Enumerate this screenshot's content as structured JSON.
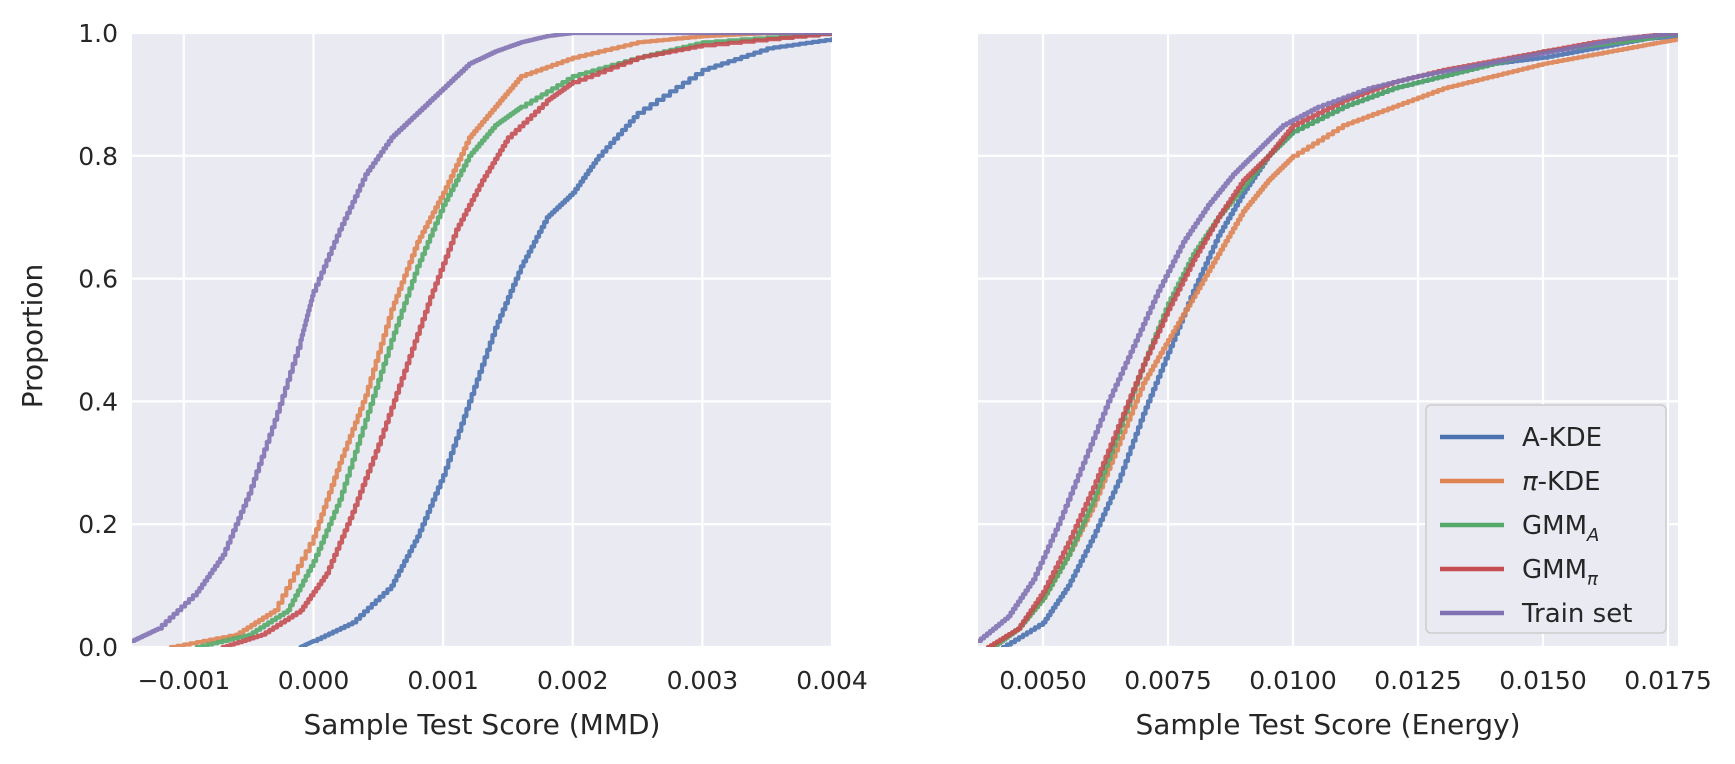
{
  "chart_data": [
    {
      "type": "line",
      "subtype": "ecdf",
      "title": "",
      "xlabel": "Sample Test Score (MMD)",
      "ylabel": "Proportion",
      "xlim": [
        -0.0014,
        0.004
      ],
      "ylim": [
        0.0,
        1.0
      ],
      "xticks": [
        -0.001,
        0.0,
        0.001,
        0.002,
        0.003,
        0.004
      ],
      "xtick_labels": [
        "−0.001",
        "0.000",
        "0.001",
        "0.002",
        "0.003",
        "0.004"
      ],
      "yticks": [
        0.0,
        0.2,
        0.4,
        0.6,
        0.8,
        1.0
      ],
      "ytick_labels": [
        "0.0",
        "0.2",
        "0.4",
        "0.6",
        "0.8",
        "1.0"
      ],
      "grid": true,
      "series": [
        {
          "name": "A-KDE",
          "color": "#4c72b0",
          "x": [
            -0.0001,
            0.0,
            0.0003,
            0.0006,
            0.0008,
            0.001,
            0.0012,
            0.0014,
            0.0016,
            0.0018,
            0.002,
            0.0022,
            0.0025,
            0.003,
            0.0035,
            0.004
          ],
          "y": [
            0.0,
            0.01,
            0.04,
            0.1,
            0.18,
            0.28,
            0.4,
            0.52,
            0.62,
            0.7,
            0.74,
            0.8,
            0.87,
            0.94,
            0.975,
            0.99
          ]
        },
        {
          "name": "π-KDE",
          "color": "#dd8452",
          "x": [
            -0.0011,
            -0.0006,
            -0.0003,
            0.0,
            0.0002,
            0.0004,
            0.0006,
            0.0008,
            0.001,
            0.0012,
            0.0014,
            0.0016,
            0.002,
            0.0025,
            0.003,
            0.0035,
            0.004
          ],
          "y": [
            0.0,
            0.02,
            0.06,
            0.18,
            0.3,
            0.41,
            0.55,
            0.66,
            0.74,
            0.83,
            0.88,
            0.93,
            0.96,
            0.985,
            0.995,
            1.0,
            1.0
          ]
        },
        {
          "name": "GMM",
          "name_sub": "A",
          "color": "#55a868",
          "x": [
            -0.0009,
            -0.0005,
            -0.0002,
            0.0,
            0.0002,
            0.0004,
            0.0006,
            0.0008,
            0.001,
            0.0012,
            0.0014,
            0.0016,
            0.002,
            0.0025,
            0.003,
            0.004
          ],
          "y": [
            0.0,
            0.02,
            0.06,
            0.14,
            0.24,
            0.37,
            0.5,
            0.62,
            0.72,
            0.8,
            0.85,
            0.88,
            0.93,
            0.96,
            0.985,
            1.0
          ]
        },
        {
          "name": "GMM",
          "name_sub": "π",
          "color": "#c44e52",
          "x": [
            -0.0007,
            -0.0004,
            -0.0001,
            0.0001,
            0.0003,
            0.0005,
            0.0007,
            0.0009,
            0.0011,
            0.0013,
            0.0015,
            0.0018,
            0.002,
            0.0025,
            0.003,
            0.004
          ],
          "y": [
            0.0,
            0.02,
            0.06,
            0.12,
            0.22,
            0.33,
            0.45,
            0.57,
            0.68,
            0.76,
            0.83,
            0.89,
            0.92,
            0.96,
            0.98,
            1.0
          ]
        },
        {
          "name": "Train set",
          "color": "#8172b3",
          "x": [
            -0.0014,
            -0.0012,
            -0.0009,
            -0.0007,
            -0.0005,
            -0.0003,
            -0.0001,
            0.0,
            0.0002,
            0.0004,
            0.0006,
            0.0008,
            0.001,
            0.0012,
            0.0014,
            0.0016,
            0.0018,
            0.002,
            0.004
          ],
          "y": [
            0.01,
            0.03,
            0.09,
            0.15,
            0.25,
            0.37,
            0.5,
            0.58,
            0.68,
            0.77,
            0.83,
            0.87,
            0.91,
            0.95,
            0.97,
            0.985,
            0.995,
            1.0,
            1.0
          ]
        }
      ]
    },
    {
      "type": "line",
      "subtype": "ecdf",
      "title": "",
      "xlabel": "Sample Test Score (Energy)",
      "ylabel": "",
      "xlim": [
        0.0037,
        0.0177
      ],
      "ylim": [
        0.0,
        1.0
      ],
      "xticks": [
        0.005,
        0.0075,
        0.01,
        0.0125,
        0.015,
        0.0175
      ],
      "xtick_labels": [
        "0.0050",
        "0.0075",
        "0.0100",
        "0.0125",
        "0.0150",
        "0.0175"
      ],
      "yticks": [
        0.0,
        0.2,
        0.4,
        0.6,
        0.8,
        1.0
      ],
      "grid": true,
      "legend_position": "lower-right",
      "series": [
        {
          "name": "A-KDE",
          "color": "#4c72b0",
          "x": [
            0.0042,
            0.005,
            0.0055,
            0.006,
            0.0065,
            0.007,
            0.0075,
            0.008,
            0.0085,
            0.009,
            0.0095,
            0.01,
            0.011,
            0.012,
            0.013,
            0.014,
            0.015,
            0.016,
            0.017,
            0.0177
          ],
          "y": [
            0.0,
            0.04,
            0.1,
            0.18,
            0.27,
            0.38,
            0.48,
            0.58,
            0.67,
            0.74,
            0.8,
            0.84,
            0.88,
            0.91,
            0.93,
            0.95,
            0.96,
            0.975,
            0.99,
            0.995
          ]
        },
        {
          "name": "π-KDE",
          "color": "#dd8452",
          "x": [
            0.0039,
            0.0045,
            0.005,
            0.0055,
            0.006,
            0.0065,
            0.007,
            0.0075,
            0.008,
            0.0085,
            0.009,
            0.0095,
            0.01,
            0.011,
            0.012,
            0.013,
            0.014,
            0.015,
            0.016,
            0.017,
            0.0177
          ],
          "y": [
            0.0,
            0.03,
            0.08,
            0.15,
            0.23,
            0.33,
            0.43,
            0.5,
            0.57,
            0.64,
            0.71,
            0.76,
            0.8,
            0.85,
            0.88,
            0.91,
            0.93,
            0.95,
            0.965,
            0.98,
            0.99
          ]
        },
        {
          "name": "GMM",
          "name_sub": "A",
          "color": "#55a868",
          "x": [
            0.004,
            0.0045,
            0.005,
            0.0055,
            0.006,
            0.0065,
            0.007,
            0.0075,
            0.008,
            0.0085,
            0.009,
            0.0095,
            0.01,
            0.011,
            0.012,
            0.013,
            0.014,
            0.015,
            0.016,
            0.017,
            0.0177
          ],
          "y": [
            0.0,
            0.03,
            0.08,
            0.15,
            0.24,
            0.35,
            0.46,
            0.56,
            0.64,
            0.7,
            0.75,
            0.8,
            0.84,
            0.88,
            0.91,
            0.93,
            0.95,
            0.97,
            0.98,
            0.99,
            1.0
          ]
        },
        {
          "name": "GMM",
          "name_sub": "π",
          "color": "#c44e52",
          "x": [
            0.0039,
            0.0045,
            0.005,
            0.0055,
            0.006,
            0.0065,
            0.007,
            0.0075,
            0.008,
            0.0085,
            0.009,
            0.0095,
            0.01,
            0.011,
            0.012,
            0.013,
            0.014,
            0.015,
            0.016,
            0.017,
            0.0177
          ],
          "y": [
            0.0,
            0.03,
            0.09,
            0.17,
            0.26,
            0.36,
            0.46,
            0.55,
            0.63,
            0.7,
            0.76,
            0.8,
            0.85,
            0.89,
            0.92,
            0.94,
            0.955,
            0.97,
            0.985,
            0.995,
            1.0
          ]
        },
        {
          "name": "Train set",
          "color": "#8172b3",
          "x": [
            0.0037,
            0.0043,
            0.0048,
            0.0053,
            0.0058,
            0.0063,
            0.0068,
            0.0073,
            0.0078,
            0.0083,
            0.0088,
            0.0093,
            0.0098,
            0.0105,
            0.0115,
            0.0125,
            0.0135,
            0.0145,
            0.0155,
            0.0165,
            0.0177
          ],
          "y": [
            0.01,
            0.05,
            0.11,
            0.2,
            0.3,
            0.4,
            0.49,
            0.58,
            0.66,
            0.72,
            0.77,
            0.81,
            0.85,
            0.88,
            0.91,
            0.93,
            0.945,
            0.96,
            0.975,
            0.99,
            1.0
          ]
        }
      ]
    }
  ]
}
